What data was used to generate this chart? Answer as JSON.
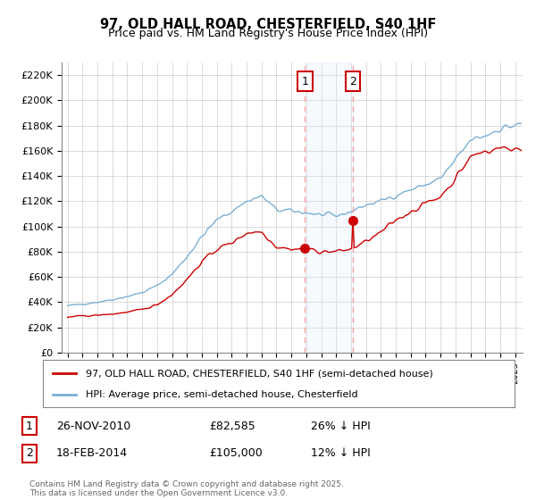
{
  "title": "97, OLD HALL ROAD, CHESTERFIELD, S40 1HF",
  "subtitle": "Price paid vs. HM Land Registry's House Price Index (HPI)",
  "legend_line1": "97, OLD HALL ROAD, CHESTERFIELD, S40 1HF (semi-detached house)",
  "legend_line2": "HPI: Average price, semi-detached house, Chesterfield",
  "footer": "Contains HM Land Registry data © Crown copyright and database right 2025.\nThis data is licensed under the Open Government Licence v3.0.",
  "annotation1_label": "1",
  "annotation1_date": "26-NOV-2010",
  "annotation1_price": "£82,585",
  "annotation1_hpi": "26% ↓ HPI",
  "annotation2_label": "2",
  "annotation2_date": "18-FEB-2014",
  "annotation2_price": "£105,000",
  "annotation2_hpi": "12% ↓ HPI",
  "purchase1_year": 2010.9,
  "purchase1_price": 82585,
  "purchase2_year": 2014.13,
  "purchase2_price": 105000,
  "ylim_max": 230000,
  "yticks": [
    0,
    20000,
    40000,
    60000,
    80000,
    100000,
    120000,
    140000,
    160000,
    180000,
    200000,
    220000
  ],
  "red_color": "#cc0000",
  "blue_color": "#7ab0d4",
  "shade_color": "#ddeeff",
  "background_color": "#ffffff",
  "grid_color": "#cccccc"
}
